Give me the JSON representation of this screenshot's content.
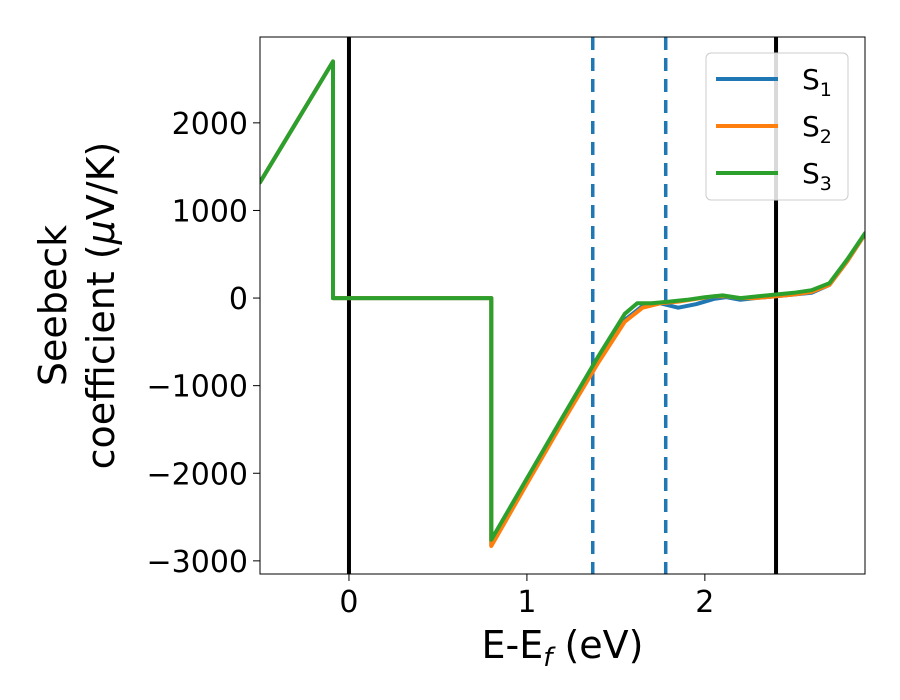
{
  "chart_data": {
    "type": "line",
    "xlabel": "E-E",
    "xlabel_sub": "f",
    "xlabel_unit": " (eV)",
    "ylabel_line1": "Seebeck",
    "ylabel_line2": "coefficient  (",
    "ylabel_mu": "μ",
    "ylabel_unit": "V/K)",
    "xlim": [
      -0.5,
      2.9
    ],
    "ylim": [
      -3150,
      2980
    ],
    "xticks": [
      0,
      1,
      2
    ],
    "xtick_labels": [
      "0",
      "1",
      "2"
    ],
    "yticks": [
      2000,
      1000,
      0,
      -1000,
      -2000,
      -3000
    ],
    "ytick_labels": [
      "2000",
      "1000",
      "0",
      "−1000",
      "−2000",
      "−3000"
    ],
    "legend_position": "upper right",
    "vlines": [
      {
        "x": 0.0,
        "style": "solid",
        "color": "#000000"
      },
      {
        "x": 2.4,
        "style": "solid",
        "color": "#000000"
      },
      {
        "x": 1.37,
        "style": "dashed",
        "color": "#1f77b4"
      },
      {
        "x": 1.78,
        "style": "dashed",
        "color": "#1f77b4"
      }
    ],
    "series": [
      {
        "name": "S",
        "sub": "1",
        "color": "#1f77b4",
        "x": [
          -0.5,
          -0.09,
          -0.09,
          0.8,
          0.8,
          1.0,
          1.2,
          1.4,
          1.55,
          1.65,
          1.75,
          1.85,
          1.95,
          2.05,
          2.12,
          2.2,
          2.28,
          2.4,
          2.5,
          2.6,
          2.7,
          2.8,
          2.9
        ],
        "y": [
          1320,
          2700,
          0,
          0,
          -2820,
          -2100,
          -1400,
          -720,
          -250,
          -90,
          -60,
          -110,
          -70,
          -10,
          10,
          -20,
          0,
          20,
          40,
          60,
          150,
          420,
          730
        ]
      },
      {
        "name": "S",
        "sub": "2",
        "color": "#ff7f0e",
        "x": [
          -0.5,
          -0.09,
          -0.09,
          0.8,
          0.8,
          1.0,
          1.2,
          1.4,
          1.55,
          1.65,
          1.75,
          1.85,
          1.95,
          2.05,
          2.12,
          2.2,
          2.28,
          2.4,
          2.5,
          2.6,
          2.7,
          2.8,
          2.9
        ],
        "y": [
          1320,
          2700,
          0,
          0,
          -2830,
          -2120,
          -1420,
          -740,
          -270,
          -110,
          -60,
          -40,
          -10,
          20,
          20,
          0,
          0,
          20,
          40,
          70,
          150,
          420,
          730
        ]
      },
      {
        "name": "S",
        "sub": "3",
        "color": "#2ca02c",
        "x": [
          -0.5,
          -0.09,
          -0.09,
          0.8,
          0.8,
          1.0,
          1.2,
          1.4,
          1.55,
          1.62,
          1.7,
          1.8,
          1.9,
          2.0,
          2.1,
          2.2,
          2.3,
          2.4,
          2.5,
          2.6,
          2.7,
          2.8,
          2.9
        ],
        "y": [
          1320,
          2700,
          0,
          0,
          -2760,
          -2060,
          -1360,
          -670,
          -180,
          -60,
          -60,
          -40,
          -20,
          10,
          30,
          0,
          20,
          40,
          60,
          90,
          170,
          440,
          740
        ]
      }
    ]
  }
}
